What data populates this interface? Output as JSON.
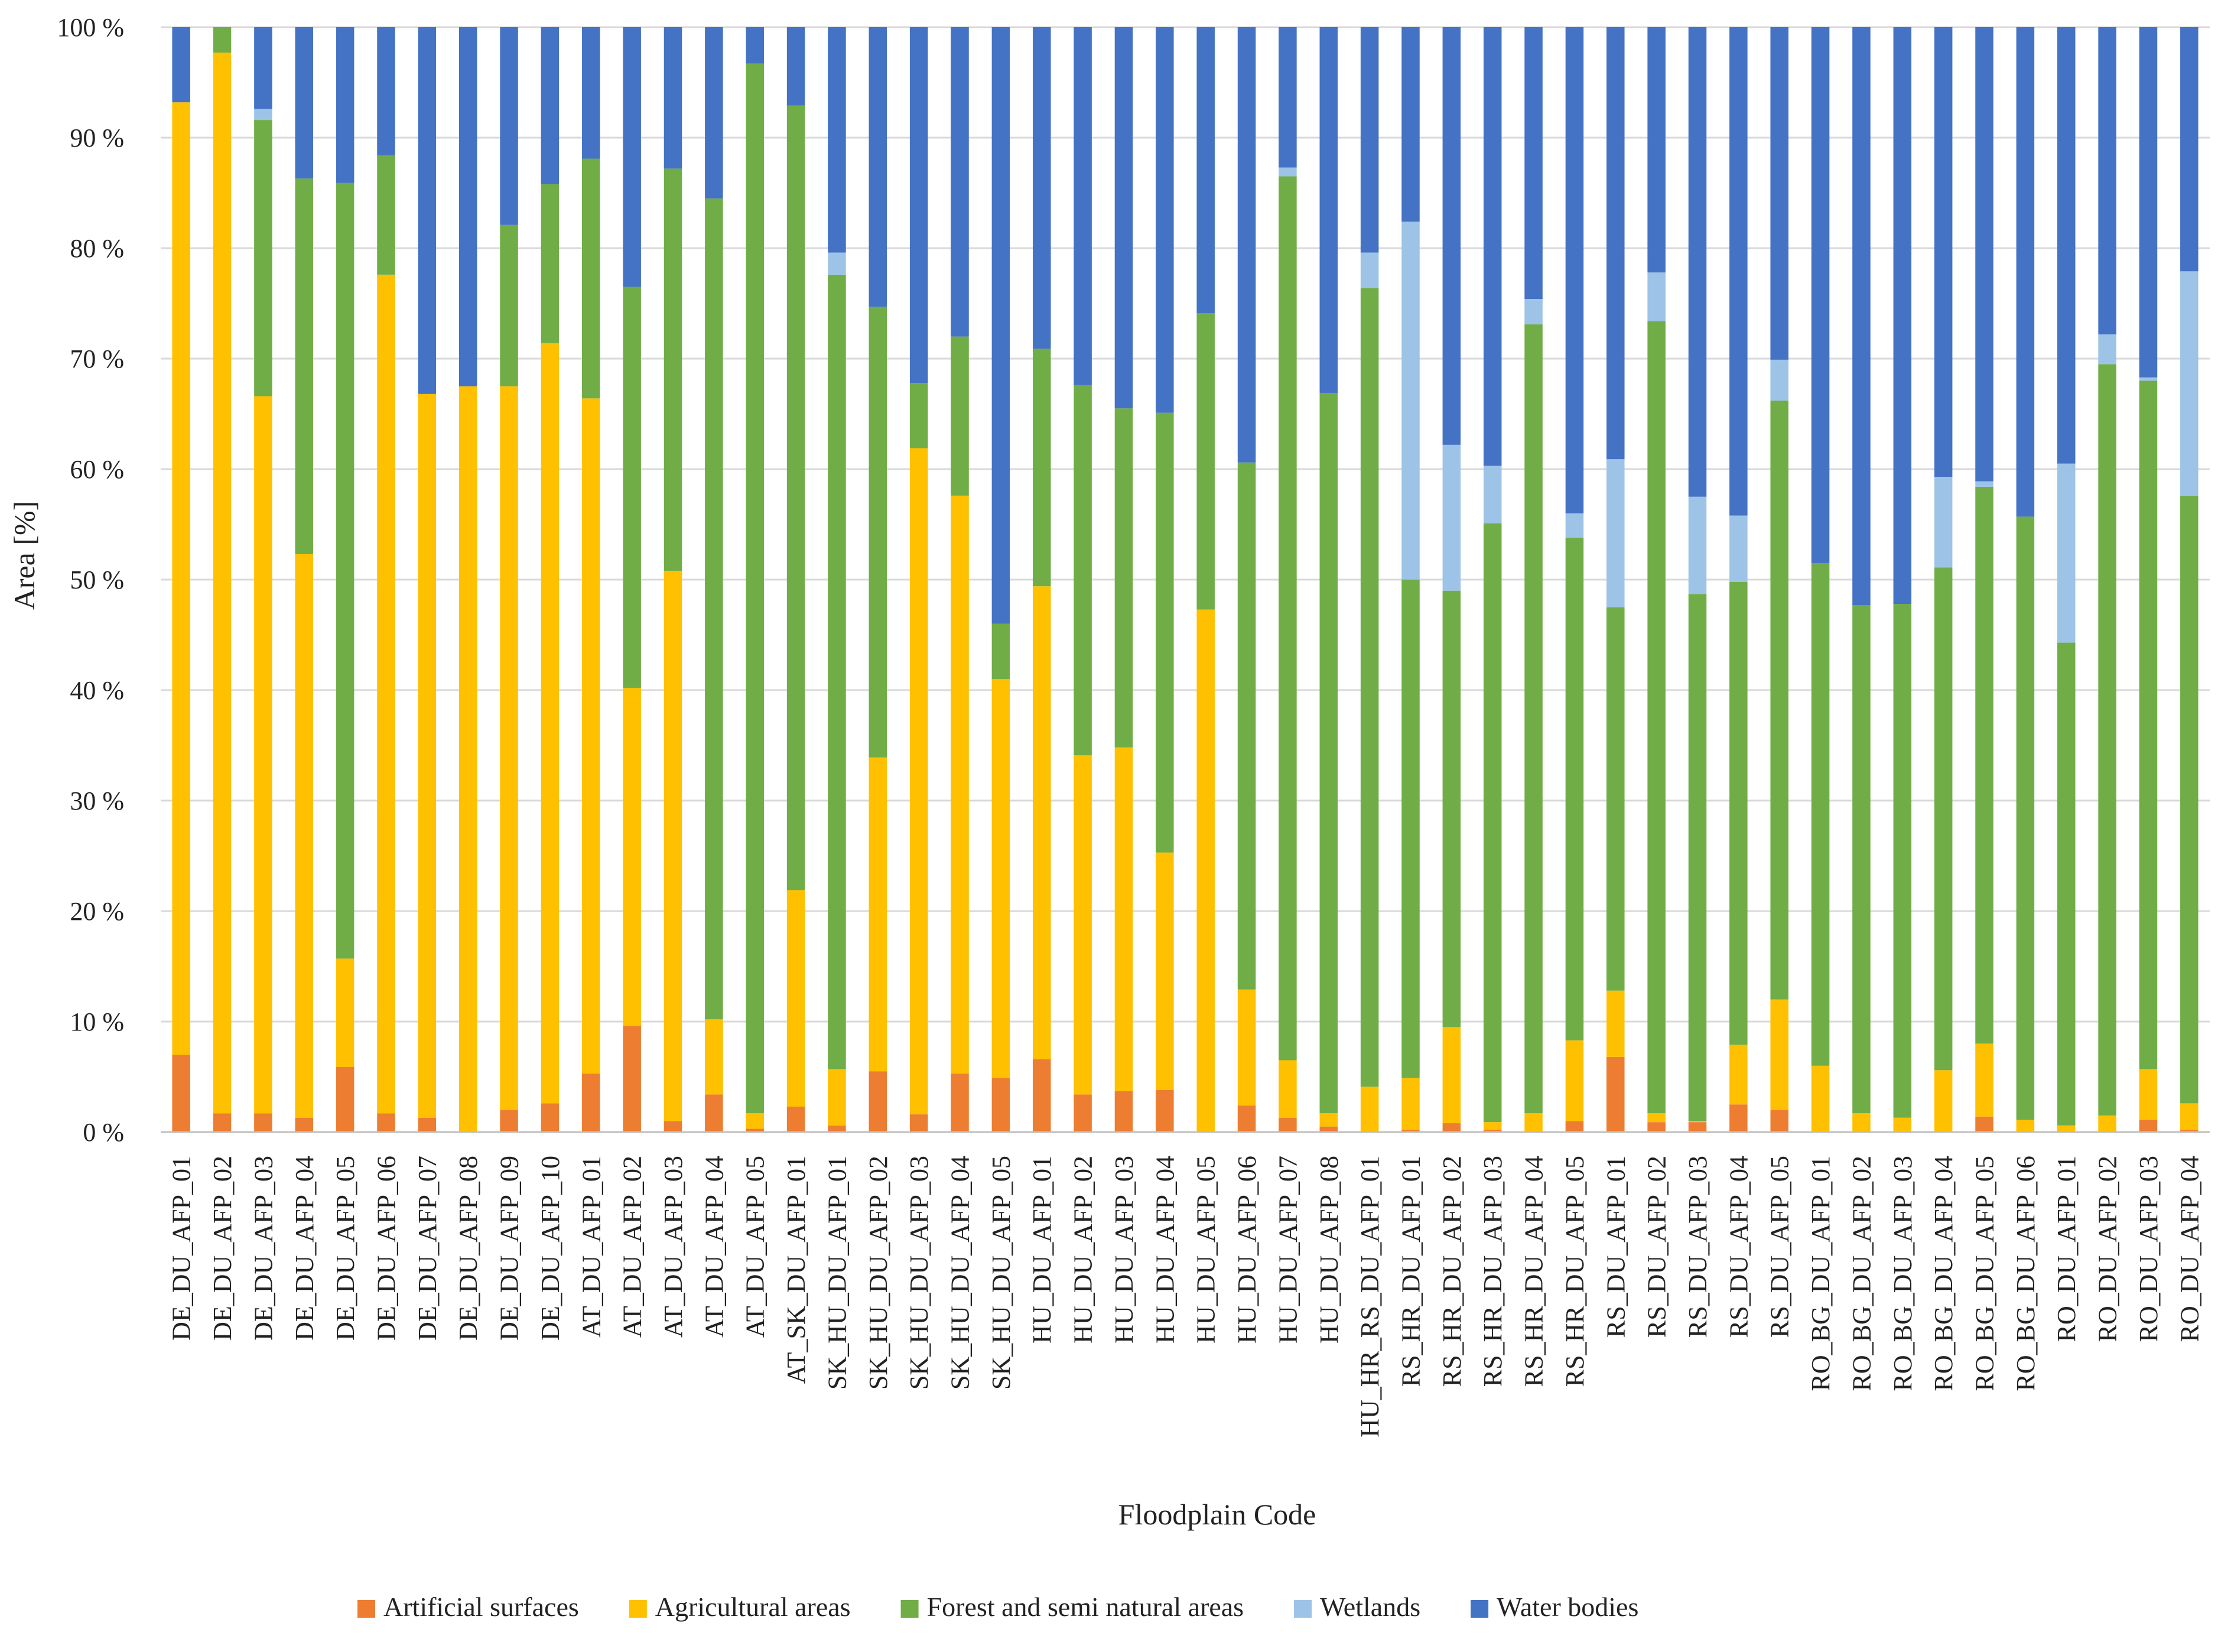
{
  "chart_data": {
    "type": "bar",
    "stacked": true,
    "title": "",
    "xlabel": "Floodplain Code",
    "ylabel": "Area [%]",
    "ylim": [
      0,
      100
    ],
    "yticks": [
      "0 %",
      "10 %",
      "20 %",
      "30 %",
      "40 %",
      "50 %",
      "60 %",
      "70 %",
      "80 %",
      "90 %",
      "100 %"
    ],
    "grid": "horizontal",
    "legend_position": "bottom",
    "categories": [
      "DE_DU_AFP_01",
      "DE_DU_AFP_02",
      "DE_DU_AFP_03",
      "DE_DU_AFP_04",
      "DE_DU_AFP_05",
      "DE_DU_AFP_06",
      "DE_DU_AFP_07",
      "DE_DU_AFP_08",
      "DE_DU_AFP_09",
      "DE_DU_AFP_10",
      "AT_DU_AFP_01",
      "AT_DU_AFP_02",
      "AT_DU_AFP_03",
      "AT_DU_AFP_04",
      "AT_DU_AFP_05",
      "AT_SK_DU_AFP_01",
      "SK_HU_DU_AFP_01",
      "SK_HU_DU_AFP_02",
      "SK_HU_DU_AFP_03",
      "SK_HU_DU_AFP_04",
      "SK_HU_DU_AFP_05",
      "HU_DU_AFP_01",
      "HU_DU_AFP_02",
      "HU_DU_AFP_03",
      "HU_DU_AFP_04",
      "HU_DU_AFP_05",
      "HU_DU_AFP_06",
      "HU_DU_AFP_07",
      "HU_DU_AFP_08",
      "HU_HR_RS_DU_AFP_01",
      "RS_HR_DU_AFP_01",
      "RS_HR_DU_AFP_02",
      "RS_HR_DU_AFP_03",
      "RS_HR_DU_AFP_04",
      "RS_HR_DU_AFP_05",
      "RS_DU_AFP_01",
      "RS_DU_AFP_02",
      "RS_DU_AFP_03",
      "RS_DU_AFP_04",
      "RS_DU_AFP_05",
      "RO_BG_DU_AFP_01",
      "RO_BG_DU_AFP_02",
      "RO_BG_DU_AFP_03",
      "RO_BG_DU_AFP_04",
      "RO_BG_DU_AFP_05",
      "RO_BG_DU_AFP_06",
      "RO_DU_AFP_01",
      "RO_DU_AFP_02",
      "RO_DU_AFP_03",
      "RO_DU_AFP_04"
    ],
    "series": [
      {
        "name": "Artificial surfaces",
        "color": "#ED7D31",
        "values": [
          7.0,
          1.7,
          1.7,
          1.3,
          5.9,
          1.7,
          1.3,
          0.0,
          2.0,
          2.6,
          5.3,
          9.6,
          1.0,
          3.4,
          0.3,
          2.3,
          0.6,
          5.5,
          1.6,
          5.3,
          4.9,
          6.6,
          3.4,
          3.7,
          3.8,
          0.0,
          2.4,
          1.3,
          0.5,
          0.0,
          0.2,
          0.8,
          0.2,
          0.1,
          1.0,
          6.8,
          0.9,
          0.9,
          2.5,
          2.0,
          0.0,
          0.1,
          0.1,
          0.0,
          1.4,
          0.0,
          0.1,
          0.0,
          1.1,
          0.2
        ]
      },
      {
        "name": "Agricultural areas",
        "color": "#FFC000",
        "values": [
          86.2,
          96.0,
          64.9,
          51.0,
          9.8,
          75.9,
          65.5,
          67.5,
          65.5,
          68.8,
          61.1,
          30.6,
          49.8,
          6.8,
          1.4,
          19.6,
          5.1,
          28.4,
          60.3,
          52.3,
          36.1,
          42.8,
          30.7,
          31.1,
          21.5,
          47.3,
          10.5,
          5.2,
          1.2,
          4.1,
          4.7,
          8.7,
          0.7,
          1.6,
          7.3,
          6.0,
          0.8,
          0.1,
          5.4,
          10.0,
          6.0,
          1.6,
          1.2,
          5.6,
          6.6,
          1.1,
          0.5,
          1.5,
          4.6,
          2.4
        ]
      },
      {
        "name": "Forest and semi natural areas",
        "color": "#70AD47",
        "values": [
          0.0,
          2.3,
          25.0,
          34.0,
          70.2,
          10.8,
          0.0,
          0.0,
          14.6,
          14.4,
          21.7,
          36.3,
          36.4,
          74.3,
          95.0,
          71.0,
          71.9,
          40.8,
          5.9,
          14.4,
          5.0,
          21.5,
          33.5,
          30.7,
          39.8,
          26.8,
          47.7,
          80.0,
          65.2,
          72.3,
          45.1,
          39.5,
          54.2,
          71.4,
          45.5,
          34.7,
          71.7,
          47.7,
          41.9,
          54.2,
          45.5,
          46.0,
          46.5,
          45.5,
          50.4,
          54.6,
          43.7,
          68.0,
          62.3,
          55.0
        ]
      },
      {
        "name": "Wetlands",
        "color": "#9DC3E6",
        "values": [
          0.0,
          0.0,
          1.0,
          0.0,
          0.0,
          0.0,
          0.0,
          0.0,
          0.0,
          0.0,
          0.0,
          0.0,
          0.0,
          0.0,
          0.0,
          0.0,
          2.0,
          0.0,
          0.0,
          0.0,
          0.0,
          0.0,
          0.0,
          0.0,
          0.0,
          0.0,
          0.0,
          0.8,
          0.0,
          3.2,
          32.4,
          13.2,
          5.2,
          2.3,
          2.2,
          13.4,
          4.4,
          8.8,
          6.0,
          3.7,
          0.0,
          0.0,
          0.0,
          8.2,
          0.5,
          0.0,
          16.2,
          2.7,
          0.3,
          20.3
        ]
      },
      {
        "name": "Water bodies",
        "color": "#4472C4",
        "values": [
          6.8,
          0.0,
          7.4,
          13.7,
          14.1,
          11.6,
          33.2,
          32.5,
          17.9,
          14.2,
          11.9,
          23.5,
          12.8,
          15.5,
          3.3,
          7.1,
          20.4,
          25.3,
          32.2,
          28.0,
          54.0,
          29.1,
          32.4,
          34.5,
          34.9,
          25.9,
          39.4,
          12.7,
          33.1,
          20.4,
          17.6,
          37.8,
          39.7,
          24.6,
          44.0,
          39.1,
          22.2,
          42.5,
          44.2,
          30.1,
          48.5,
          52.3,
          52.2,
          40.7,
          41.1,
          44.3,
          39.5,
          27.8,
          31.7,
          22.1
        ]
      }
    ]
  }
}
